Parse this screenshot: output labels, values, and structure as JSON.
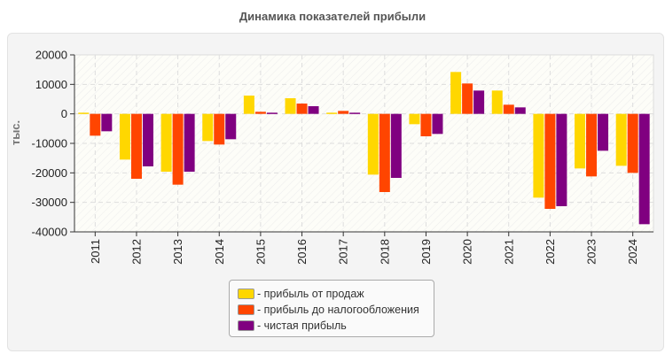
{
  "chart_data": {
    "type": "bar",
    "title": "Динамика показателей прибыли",
    "ylabel": "тыс.",
    "xlabel": "",
    "ylim": [
      -40000,
      20000
    ],
    "yticks": [
      "20000",
      "10000",
      "0",
      "-10000",
      "-20000",
      "-30000",
      "-40000"
    ],
    "grid": true,
    "legend_position": "bottom",
    "categories": [
      "2011",
      "2012",
      "2013",
      "2014",
      "2015",
      "2016",
      "2017",
      "2018",
      "2019",
      "2020",
      "2021",
      "2022",
      "2023",
      "2024"
    ],
    "series": [
      {
        "name": "- прибыль от продаж",
        "color": "#FFD700",
        "values": [
          400,
          -15500,
          -19600,
          -9200,
          6200,
          5300,
          400,
          -20600,
          -3500,
          14200,
          7900,
          -28400,
          -18500,
          -17600
        ]
      },
      {
        "name": "- прибыль до налогообложения",
        "color": "#FF4500",
        "values": [
          -7400,
          -22000,
          -24000,
          -10400,
          700,
          3500,
          1000,
          -26500,
          -7600,
          10300,
          3100,
          -32200,
          -21200,
          -20000
        ]
      },
      {
        "name": "- чистая прибыль",
        "color": "#800080",
        "values": [
          -5900,
          -17800,
          -19600,
          -8600,
          400,
          2600,
          400,
          -21700,
          -6800,
          7900,
          2200,
          -31300,
          -12500,
          -37400
        ]
      }
    ]
  }
}
